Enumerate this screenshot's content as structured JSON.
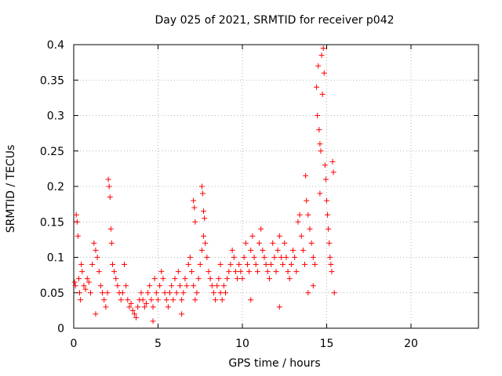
{
  "chart_data": {
    "type": "scatter",
    "title": "Day 025 of 2021, SRMTID for receiver p042",
    "xlabel": "GPS time / hours",
    "ylabel": "SRMTID / TECUs",
    "xlim": [
      0,
      24
    ],
    "ylim": [
      0,
      0.4
    ],
    "xticks": [
      0,
      5,
      10,
      15,
      20
    ],
    "yticks": [
      0,
      0.05,
      0.1,
      0.15,
      0.2,
      0.25,
      0.3,
      0.35,
      0.4
    ],
    "xtick_labels": [
      "0",
      "5",
      "10",
      "15",
      "20"
    ],
    "ytick_labels": [
      "0",
      "0.05",
      "0.1",
      "0.15",
      "0.2",
      "0.25",
      "0.3",
      "0.35",
      "0.4"
    ],
    "grid": true,
    "marker": "+",
    "color": "#ff0000",
    "series": [
      {
        "name": "SRMTID",
        "points": [
          [
            0.05,
            0.065
          ],
          [
            0.1,
            0.06
          ],
          [
            0.15,
            0.16
          ],
          [
            0.2,
            0.15
          ],
          [
            0.25,
            0.13
          ],
          [
            0.3,
            0.07
          ],
          [
            0.35,
            0.05
          ],
          [
            0.4,
            0.04
          ],
          [
            0.45,
            0.09
          ],
          [
            0.5,
            0.08
          ],
          [
            0.6,
            0.06
          ],
          [
            0.7,
            0.055
          ],
          [
            0.8,
            0.07
          ],
          [
            0.9,
            0.065
          ],
          [
            1.0,
            0.05
          ],
          [
            1.1,
            0.09
          ],
          [
            1.2,
            0.12
          ],
          [
            1.3,
            0.11
          ],
          [
            1.4,
            0.1
          ],
          [
            1.5,
            0.08
          ],
          [
            1.6,
            0.06
          ],
          [
            1.7,
            0.05
          ],
          [
            1.8,
            0.04
          ],
          [
            1.9,
            0.03
          ],
          [
            2.0,
            0.05
          ],
          [
            2.05,
            0.21
          ],
          [
            2.1,
            0.2
          ],
          [
            2.15,
            0.185
          ],
          [
            2.2,
            0.14
          ],
          [
            2.25,
            0.12
          ],
          [
            2.3,
            0.09
          ],
          [
            2.4,
            0.08
          ],
          [
            2.5,
            0.07
          ],
          [
            2.6,
            0.06
          ],
          [
            2.7,
            0.05
          ],
          [
            2.8,
            0.04
          ],
          [
            2.9,
            0.05
          ],
          [
            3.0,
            0.09
          ],
          [
            3.1,
            0.06
          ],
          [
            3.2,
            0.04
          ],
          [
            3.3,
            0.03
          ],
          [
            3.4,
            0.035
          ],
          [
            3.5,
            0.025
          ],
          [
            3.6,
            0.02
          ],
          [
            3.7,
            0.015
          ],
          [
            3.8,
            0.03
          ],
          [
            3.9,
            0.04
          ],
          [
            4.0,
            0.05
          ],
          [
            4.1,
            0.04
          ],
          [
            4.2,
            0.03
          ],
          [
            4.3,
            0.035
          ],
          [
            4.4,
            0.05
          ],
          [
            4.5,
            0.06
          ],
          [
            4.6,
            0.04
          ],
          [
            4.7,
            0.03
          ],
          [
            4.8,
            0.07
          ],
          [
            4.9,
            0.05
          ],
          [
            5.0,
            0.04
          ],
          [
            5.1,
            0.06
          ],
          [
            5.2,
            0.08
          ],
          [
            5.3,
            0.07
          ],
          [
            5.4,
            0.05
          ],
          [
            5.5,
            0.04
          ],
          [
            5.6,
            0.03
          ],
          [
            5.7,
            0.05
          ],
          [
            5.8,
            0.06
          ],
          [
            5.9,
            0.04
          ],
          [
            6.0,
            0.07
          ],
          [
            6.1,
            0.05
          ],
          [
            6.2,
            0.08
          ],
          [
            6.3,
            0.06
          ],
          [
            6.4,
            0.04
          ],
          [
            6.5,
            0.05
          ],
          [
            6.6,
            0.07
          ],
          [
            6.7,
            0.06
          ],
          [
            6.8,
            0.09
          ],
          [
            6.9,
            0.1
          ],
          [
            7.0,
            0.08
          ],
          [
            7.1,
            0.06
          ],
          [
            7.2,
            0.04
          ],
          [
            7.3,
            0.05
          ],
          [
            7.4,
            0.07
          ],
          [
            7.5,
            0.09
          ],
          [
            7.6,
            0.11
          ],
          [
            7.7,
            0.13
          ],
          [
            7.8,
            0.12
          ],
          [
            7.9,
            0.1
          ],
          [
            8.0,
            0.08
          ],
          [
            7.1,
            0.18
          ],
          [
            7.15,
            0.17
          ],
          [
            7.2,
            0.15
          ],
          [
            7.6,
            0.2
          ],
          [
            7.65,
            0.19
          ],
          [
            7.7,
            0.165
          ],
          [
            7.75,
            0.155
          ],
          [
            8.1,
            0.07
          ],
          [
            8.2,
            0.06
          ],
          [
            8.3,
            0.05
          ],
          [
            8.4,
            0.04
          ],
          [
            8.5,
            0.06
          ],
          [
            8.6,
            0.07
          ],
          [
            8.7,
            0.05
          ],
          [
            8.8,
            0.04
          ],
          [
            8.9,
            0.06
          ],
          [
            9.0,
            0.05
          ],
          [
            9.1,
            0.07
          ],
          [
            9.2,
            0.08
          ],
          [
            9.3,
            0.09
          ],
          [
            9.4,
            0.11
          ],
          [
            9.5,
            0.1
          ],
          [
            9.6,
            0.08
          ],
          [
            9.7,
            0.07
          ],
          [
            9.8,
            0.09
          ],
          [
            9.9,
            0.08
          ],
          [
            10.0,
            0.07
          ],
          [
            10.1,
            0.1
          ],
          [
            10.2,
            0.12
          ],
          [
            10.3,
            0.09
          ],
          [
            10.4,
            0.08
          ],
          [
            10.5,
            0.11
          ],
          [
            10.6,
            0.13
          ],
          [
            10.7,
            0.1
          ],
          [
            10.8,
            0.09
          ],
          [
            10.9,
            0.08
          ],
          [
            11.0,
            0.12
          ],
          [
            11.1,
            0.14
          ],
          [
            11.2,
            0.11
          ],
          [
            11.3,
            0.1
          ],
          [
            11.4,
            0.09
          ],
          [
            11.5,
            0.08
          ],
          [
            11.6,
            0.07
          ],
          [
            11.7,
            0.09
          ],
          [
            11.8,
            0.12
          ],
          [
            11.9,
            0.1
          ],
          [
            12.0,
            0.08
          ],
          [
            12.1,
            0.11
          ],
          [
            12.2,
            0.13
          ],
          [
            12.3,
            0.1
          ],
          [
            12.4,
            0.09
          ],
          [
            12.5,
            0.12
          ],
          [
            12.6,
            0.1
          ],
          [
            12.7,
            0.08
          ],
          [
            12.8,
            0.07
          ],
          [
            12.9,
            0.09
          ],
          [
            13.0,
            0.11
          ],
          [
            13.1,
            0.1
          ],
          [
            13.2,
            0.08
          ],
          [
            13.3,
            0.15
          ],
          [
            13.4,
            0.16
          ],
          [
            13.5,
            0.13
          ],
          [
            13.6,
            0.11
          ],
          [
            13.7,
            0.09
          ],
          [
            13.75,
            0.215
          ],
          [
            13.8,
            0.18
          ],
          [
            13.9,
            0.16
          ],
          [
            14.0,
            0.14
          ],
          [
            14.1,
            0.12
          ],
          [
            14.2,
            0.1
          ],
          [
            14.3,
            0.09
          ],
          [
            14.4,
            0.34
          ],
          [
            14.45,
            0.3
          ],
          [
            14.5,
            0.37
          ],
          [
            14.55,
            0.28
          ],
          [
            14.6,
            0.26
          ],
          [
            14.65,
            0.25
          ],
          [
            14.7,
            0.385
          ],
          [
            14.75,
            0.33
          ],
          [
            14.8,
            0.395
          ],
          [
            14.85,
            0.36
          ],
          [
            14.9,
            0.23
          ],
          [
            14.95,
            0.21
          ],
          [
            15.0,
            0.18
          ],
          [
            15.05,
            0.16
          ],
          [
            15.1,
            0.14
          ],
          [
            15.15,
            0.12
          ],
          [
            15.2,
            0.1
          ],
          [
            15.25,
            0.09
          ],
          [
            15.3,
            0.08
          ],
          [
            15.35,
            0.235
          ],
          [
            15.4,
            0.22
          ],
          [
            15.45,
            0.05
          ],
          [
            14.2,
            0.06
          ],
          [
            14.6,
            0.19
          ],
          [
            13.9,
            0.05
          ],
          [
            12.2,
            0.03
          ],
          [
            10.5,
            0.04
          ],
          [
            8.7,
            0.09
          ],
          [
            6.4,
            0.02
          ],
          [
            4.7,
            0.01
          ],
          [
            1.3,
            0.02
          ]
        ]
      }
    ]
  }
}
